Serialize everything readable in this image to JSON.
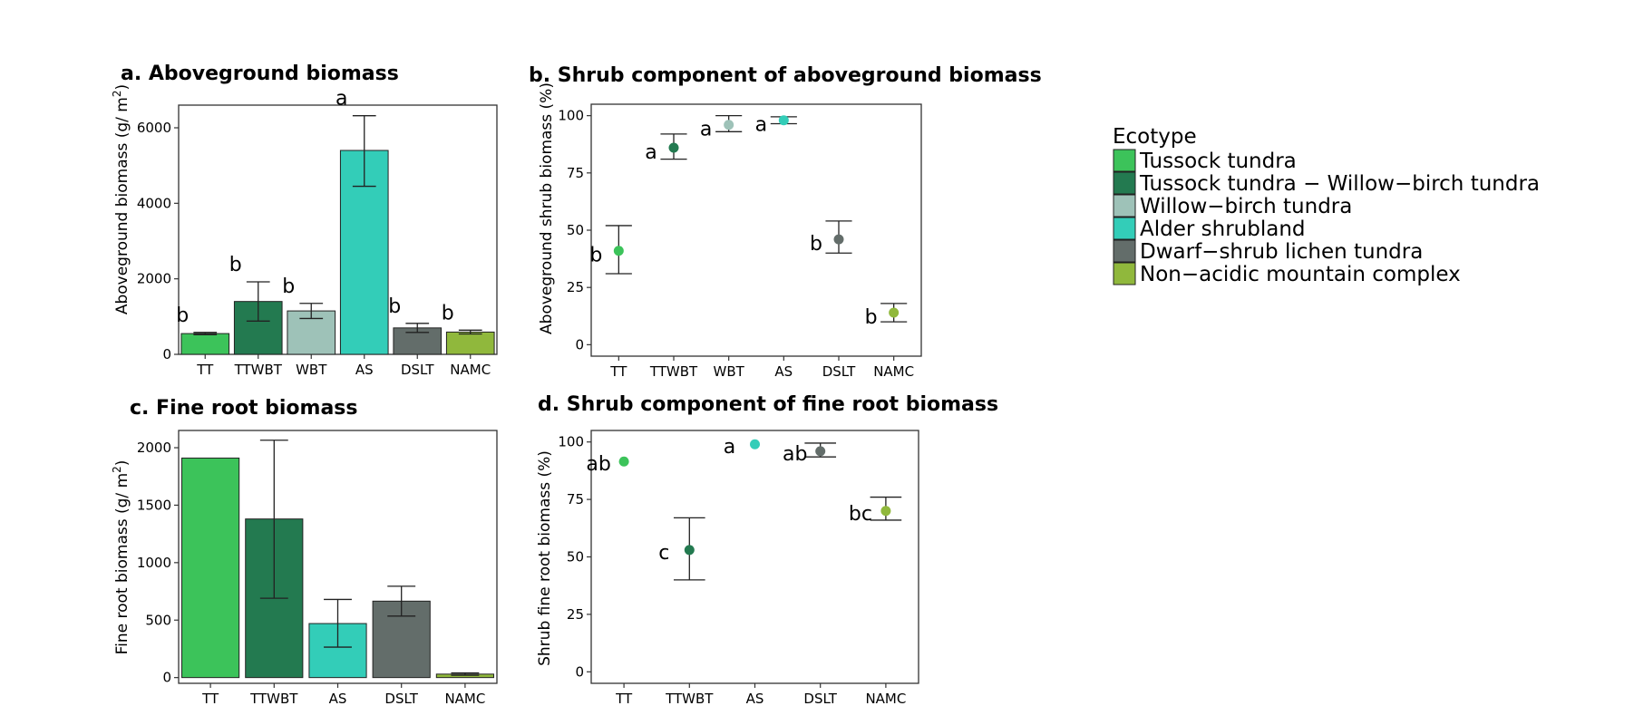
{
  "legend": {
    "title": "Ecotype",
    "items": [
      {
        "code": "TT",
        "label": "Tussock tundra",
        "color": "#3cc35a"
      },
      {
        "code": "TTWBT",
        "label": "Tussock tundra − Willow−birch tundra",
        "color": "#237a50"
      },
      {
        "code": "WBT",
        "label": "Willow−birch tundra",
        "color": "#9ec2b8"
      },
      {
        "code": "AS",
        "label": "Alder shrubland",
        "color": "#33cdb8"
      },
      {
        "code": "DSLT",
        "label": "Dwarf−shrub lichen tundra",
        "color": "#636d6a"
      },
      {
        "code": "NAMC",
        "label": "Non−acidic mountain complex",
        "color": "#90b83c"
      }
    ]
  },
  "chart_data": [
    {
      "id": "a",
      "type": "bar",
      "title": "a. Aboveground biomass",
      "ylabel": "Aboveground biomass (g/ m²)",
      "ylim": [
        0,
        6600
      ],
      "yticks": [
        0,
        2000,
        4000,
        6000
      ],
      "categories": [
        "TT",
        "TTWBT",
        "WBT",
        "AS",
        "DSLT",
        "NAMC"
      ],
      "values": [
        550,
        1400,
        1150,
        5400,
        700,
        590
      ],
      "err_low": [
        520,
        880,
        950,
        4450,
        580,
        540
      ],
      "err_high": [
        580,
        1920,
        1350,
        6320,
        820,
        640
      ],
      "labels": [
        "b",
        "b",
        "b",
        "a",
        "b",
        "b"
      ]
    },
    {
      "id": "b",
      "type": "scatter",
      "title": "b. Shrub component of aboveground biomass",
      "ylabel": "Aboveground shrub biomass (%)",
      "ylim": [
        -5,
        105
      ],
      "yticks": [
        0,
        25,
        50,
        75,
        100
      ],
      "categories": [
        "TT",
        "TTWBT",
        "WBT",
        "AS",
        "DSLT",
        "NAMC"
      ],
      "values": [
        41,
        86,
        96,
        98,
        46,
        14
      ],
      "err_low": [
        31,
        81,
        93,
        96.5,
        40,
        10
      ],
      "err_high": [
        52,
        92,
        100,
        99.5,
        54,
        18
      ],
      "labels": [
        "b",
        "a",
        "a",
        "a",
        "b",
        "b"
      ]
    },
    {
      "id": "c",
      "type": "bar",
      "title": "c. Fine root biomass",
      "ylabel": "Fine root biomass (g/ m²)",
      "ylim": [
        -50,
        2150
      ],
      "yticks": [
        0,
        500,
        1000,
        1500,
        2000
      ],
      "categories": [
        "TT",
        "TTWBT",
        "AS",
        "DSLT",
        "NAMC"
      ],
      "values": [
        1910,
        1380,
        470,
        665,
        30
      ],
      "err_low": [
        null,
        690,
        265,
        535,
        20
      ],
      "err_high": [
        null,
        2065,
        680,
        795,
        40
      ],
      "labels": []
    },
    {
      "id": "d",
      "type": "scatter",
      "title": "d. Shrub component of fine root biomass",
      "ylabel": "Shrub fine root biomass (%)",
      "ylim": [
        -5,
        105
      ],
      "yticks": [
        0,
        25,
        50,
        75,
        100
      ],
      "categories": [
        "TT",
        "TTWBT",
        "AS",
        "DSLT",
        "NAMC"
      ],
      "values": [
        91.5,
        53,
        99,
        96,
        70
      ],
      "err_low": [
        null,
        40,
        null,
        93.5,
        66
      ],
      "err_high": [
        null,
        67,
        null,
        99.5,
        76
      ],
      "labels": [
        "ab",
        "c",
        "a",
        "ab",
        "bc"
      ]
    }
  ]
}
